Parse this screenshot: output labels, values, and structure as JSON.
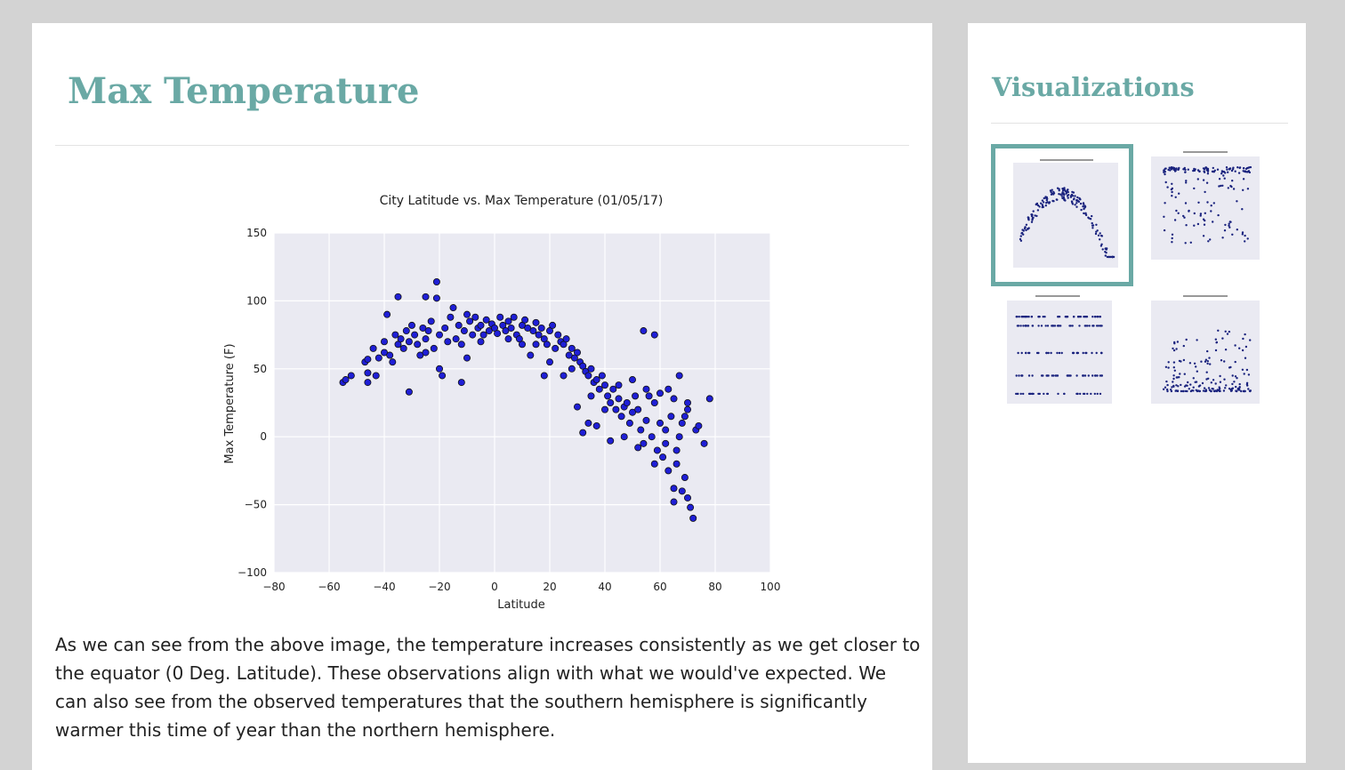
{
  "main": {
    "title": "Max Temperature",
    "description": "As we can see from the above image, the temperature increases consistently as we get closer to the equator (0 Deg. Latitude). These observations align with what we would've expected. We can also see from the observed temperatures that the southern hemisphere is significantly warmer this time of year than the northern hemisphere."
  },
  "sidebar": {
    "title": "Visualizations",
    "thumbnails": [
      {
        "name": "thumbnail-max-temperature",
        "selected": true
      },
      {
        "name": "thumbnail-humidity",
        "selected": false
      },
      {
        "name": "thumbnail-cloudiness",
        "selected": false
      },
      {
        "name": "thumbnail-wind-speed",
        "selected": false
      }
    ]
  },
  "colors": {
    "accent": "#6aa9a5",
    "plot_background": "#eaeaf2",
    "point": "#1f1fd6",
    "thumb_point": "#1a237e"
  },
  "chart_data": {
    "type": "scatter",
    "title": "City Latitude vs. Max Temperature (01/05/17)",
    "xlabel": "Latitude",
    "ylabel": "Max Temperature (F)",
    "xlim": [
      -80,
      100
    ],
    "ylim": [
      -100,
      150
    ],
    "xticks": [
      "−80",
      "−60",
      "−40",
      "−20",
      "0",
      "20",
      "40",
      "60",
      "80",
      "100"
    ],
    "yticks": [
      "150",
      "100",
      "50",
      "0",
      "−50",
      "−100"
    ],
    "grid": true,
    "points": [
      [
        -55,
        40
      ],
      [
        -54,
        42
      ],
      [
        -52,
        45
      ],
      [
        -47,
        55
      ],
      [
        -46,
        57
      ],
      [
        -46,
        47
      ],
      [
        -46,
        40
      ],
      [
        -44,
        65
      ],
      [
        -43,
        45
      ],
      [
        -42,
        58
      ],
      [
        -40,
        70
      ],
      [
        -40,
        62
      ],
      [
        -39,
        90
      ],
      [
        -38,
        60
      ],
      [
        -37,
        55
      ],
      [
        -36,
        75
      ],
      [
        -35,
        103
      ],
      [
        -35,
        68
      ],
      [
        -34,
        72
      ],
      [
        -33,
        65
      ],
      [
        -32,
        78
      ],
      [
        -31,
        70
      ],
      [
        -31,
        33
      ],
      [
        -30,
        82
      ],
      [
        -29,
        75
      ],
      [
        -28,
        68
      ],
      [
        -27,
        60
      ],
      [
        -26,
        80
      ],
      [
        -25,
        103
      ],
      [
        -25,
        72
      ],
      [
        -24,
        78
      ],
      [
        -23,
        85
      ],
      [
        -22,
        65
      ],
      [
        -21,
        114
      ],
      [
        -21,
        102
      ],
      [
        -20,
        75
      ],
      [
        -20,
        50
      ],
      [
        -19,
        45
      ],
      [
        -18,
        80
      ],
      [
        -17,
        70
      ],
      [
        -16,
        88
      ],
      [
        -15,
        95
      ],
      [
        -14,
        72
      ],
      [
        -13,
        82
      ],
      [
        -12,
        40
      ],
      [
        -12,
        68
      ],
      [
        -11,
        78
      ],
      [
        -10,
        90
      ],
      [
        -9,
        85
      ],
      [
        -8,
        75
      ],
      [
        -7,
        88
      ],
      [
        -6,
        80
      ],
      [
        -5,
        82
      ],
      [
        -4,
        75
      ],
      [
        -3,
        86
      ],
      [
        -2,
        78
      ],
      [
        -1,
        83
      ],
      [
        0,
        80
      ],
      [
        1,
        76
      ],
      [
        2,
        88
      ],
      [
        3,
        82
      ],
      [
        4,
        78
      ],
      [
        5,
        85
      ],
      [
        6,
        80
      ],
      [
        7,
        88
      ],
      [
        8,
        75
      ],
      [
        9,
        72
      ],
      [
        10,
        82
      ],
      [
        11,
        86
      ],
      [
        12,
        80
      ],
      [
        13,
        60
      ],
      [
        14,
        78
      ],
      [
        15,
        84
      ],
      [
        16,
        75
      ],
      [
        17,
        80
      ],
      [
        18,
        72
      ],
      [
        19,
        68
      ],
      [
        20,
        78
      ],
      [
        21,
        82
      ],
      [
        22,
        65
      ],
      [
        23,
        75
      ],
      [
        24,
        70
      ],
      [
        25,
        68
      ],
      [
        26,
        72
      ],
      [
        27,
        60
      ],
      [
        28,
        65
      ],
      [
        28,
        50
      ],
      [
        29,
        58
      ],
      [
        30,
        62
      ],
      [
        31,
        55
      ],
      [
        32,
        52
      ],
      [
        33,
        48
      ],
      [
        34,
        45
      ],
      [
        35,
        50
      ],
      [
        36,
        40
      ],
      [
        37,
        42
      ],
      [
        38,
        35
      ],
      [
        39,
        45
      ],
      [
        40,
        38
      ],
      [
        41,
        30
      ],
      [
        42,
        25
      ],
      [
        43,
        35
      ],
      [
        44,
        20
      ],
      [
        45,
        28
      ],
      [
        46,
        15
      ],
      [
        47,
        22
      ],
      [
        48,
        25
      ],
      [
        49,
        10
      ],
      [
        50,
        18
      ],
      [
        51,
        30
      ],
      [
        52,
        20
      ],
      [
        53,
        5
      ],
      [
        54,
        78
      ],
      [
        54,
        -5
      ],
      [
        55,
        12
      ],
      [
        56,
        30
      ],
      [
        57,
        0
      ],
      [
        58,
        75
      ],
      [
        58,
        25
      ],
      [
        59,
        -10
      ],
      [
        60,
        10
      ],
      [
        61,
        -15
      ],
      [
        62,
        5
      ],
      [
        63,
        35
      ],
      [
        63,
        -25
      ],
      [
        64,
        15
      ],
      [
        65,
        -38
      ],
      [
        65,
        -48
      ],
      [
        66,
        -20
      ],
      [
        67,
        0
      ],
      [
        67,
        45
      ],
      [
        68,
        -40
      ],
      [
        68,
        10
      ],
      [
        69,
        -30
      ],
      [
        70,
        20
      ],
      [
        70,
        -45
      ],
      [
        71,
        -52
      ],
      [
        72,
        -60
      ],
      [
        73,
        5
      ],
      [
        74,
        8
      ],
      [
        30,
        22
      ],
      [
        20,
        55
      ],
      [
        25,
        45
      ],
      [
        15,
        68
      ],
      [
        35,
        30
      ],
      [
        40,
        20
      ],
      [
        45,
        38
      ],
      [
        50,
        42
      ],
      [
        55,
        35
      ],
      [
        60,
        32
      ],
      [
        65,
        28
      ],
      [
        70,
        25
      ],
      [
        78,
        28
      ],
      [
        76,
        -5
      ],
      [
        18,
        45
      ],
      [
        -10,
        58
      ],
      [
        -5,
        70
      ],
      [
        5,
        72
      ],
      [
        10,
        68
      ],
      [
        -25,
        62
      ],
      [
        32,
        3
      ],
      [
        34,
        10
      ],
      [
        37,
        8
      ],
      [
        42,
        -3
      ],
      [
        47,
        0
      ],
      [
        52,
        -8
      ],
      [
        58,
        -20
      ],
      [
        62,
        -5
      ],
      [
        66,
        -10
      ],
      [
        69,
        15
      ]
    ]
  }
}
